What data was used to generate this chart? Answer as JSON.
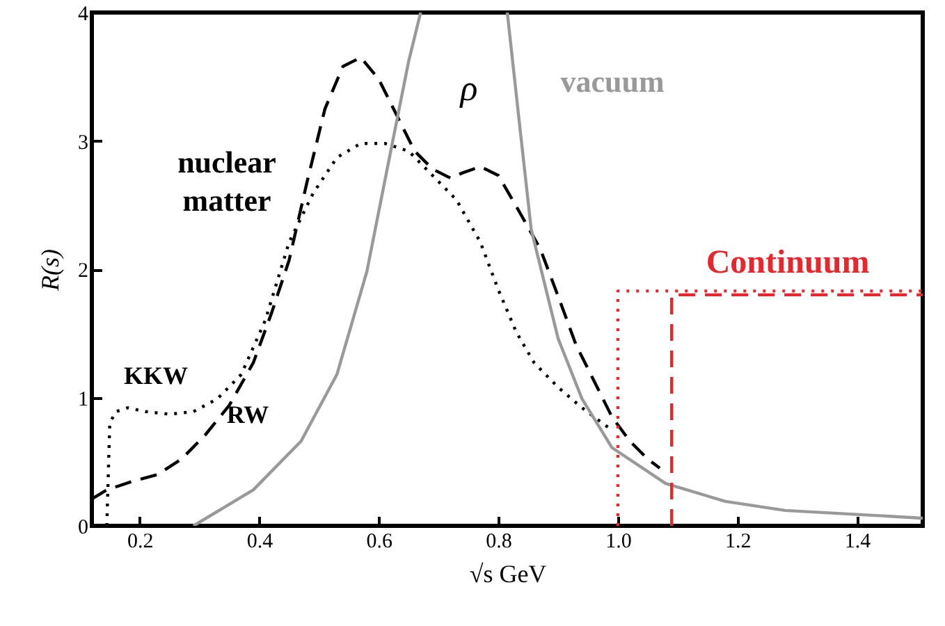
{
  "chart_data": {
    "type": "line",
    "xlabel": "√s  GeV",
    "ylabel": "R(s)",
    "xlim": [
      0.12,
      1.51
    ],
    "ylim": [
      0,
      4
    ],
    "xticks": [
      0.2,
      0.4,
      0.6,
      0.8,
      {
        "value": 1,
        "label": "1.0"
      },
      1.2,
      1.4
    ],
    "yticks": [
      0,
      1,
      2,
      3,
      4
    ],
    "grid": false,
    "legend": false,
    "annotations": [
      "nuclear matter",
      "ρ"
    ],
    "series": [
      {
        "name": "KKW",
        "color": "#000000",
        "line_style": "dotted",
        "x": [
          0.145,
          0.15,
          0.16,
          0.18,
          0.21,
          0.25,
          0.29,
          0.33,
          0.37,
          0.41,
          0.45,
          0.49,
          0.53,
          0.57,
          0.61,
          0.65,
          0.69,
          0.73,
          0.77,
          0.8,
          0.83,
          0.86,
          0.9,
          0.94,
          0.98,
          0.99
        ],
        "values": [
          0,
          0.8,
          0.89,
          0.92,
          0.89,
          0.87,
          0.89,
          0.99,
          1.18,
          1.6,
          2.21,
          2.59,
          2.87,
          2.98,
          2.98,
          2.92,
          2.73,
          2.54,
          2.21,
          1.84,
          1.51,
          1.27,
          1.08,
          0.92,
          0.78,
          0.75
        ]
      },
      {
        "name": "RW",
        "color": "#000000",
        "line_style": "dashed",
        "x": [
          0.12,
          0.145,
          0.19,
          0.23,
          0.27,
          0.31,
          0.35,
          0.39,
          0.42,
          0.45,
          0.48,
          0.51,
          0.54,
          0.57,
          0.6,
          0.63,
          0.66,
          0.69,
          0.72,
          0.74,
          0.77,
          0.8,
          0.83,
          0.87,
          0.9,
          0.93,
          0.96,
          0.99,
          1.02,
          1.05,
          1.07
        ],
        "values": [
          0.21,
          0.28,
          0.35,
          0.4,
          0.52,
          0.71,
          0.94,
          1.27,
          1.65,
          2.07,
          2.68,
          3.25,
          3.58,
          3.65,
          3.48,
          3.2,
          2.92,
          2.78,
          2.71,
          2.75,
          2.8,
          2.73,
          2.49,
          2.16,
          1.79,
          1.41,
          1.13,
          0.85,
          0.66,
          0.52,
          0.45
        ]
      },
      {
        "name": "vacuum",
        "color": "#999999",
        "line_style": "solid",
        "x": [
          0.29,
          0.39,
          0.47,
          0.53,
          0.58,
          0.62,
          0.65,
          0.67,
          0.745,
          0.815,
          0.835,
          0.855,
          0.9,
          0.94,
          0.99,
          1.08,
          1.18,
          1.28,
          1.51
        ],
        "values": [
          0,
          0.28,
          0.66,
          1.18,
          1.98,
          2.92,
          3.62,
          4,
          null,
          4,
          3.15,
          2.31,
          1.46,
          0.99,
          0.61,
          0.33,
          0.19,
          0.12,
          0.06
        ]
      },
      {
        "name": "Continuum",
        "color": "#e8262c",
        "line_style": "dotted",
        "x": [
          1,
          1,
          1.51
        ],
        "values": [
          0,
          1.83,
          1.83
        ]
      },
      {
        "color": "#e8262c",
        "line_style": "dashed",
        "x": [
          1.09,
          1.09,
          1.51
        ],
        "values": [
          0,
          1.8,
          1.8
        ]
      }
    ]
  }
}
